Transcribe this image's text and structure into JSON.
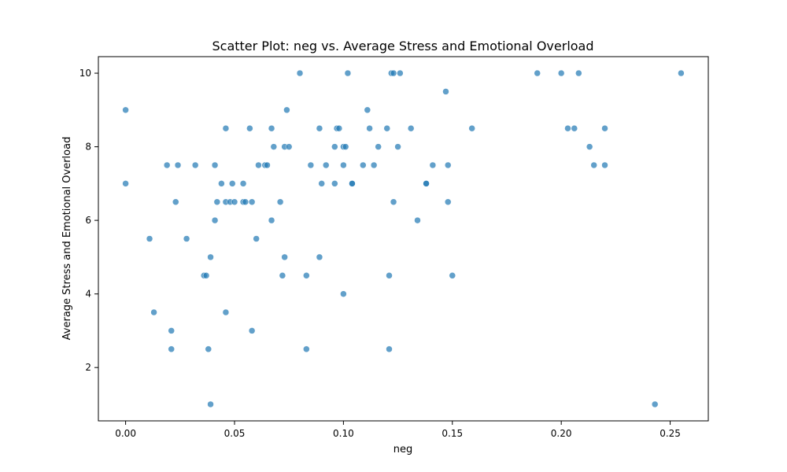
{
  "chart_data": {
    "type": "scatter",
    "title": "Scatter Plot: neg vs. Average Stress and Emotional Overload",
    "xlabel": "neg",
    "ylabel": "Average Stress and Emotional Overload",
    "xlim": [
      -0.0125,
      0.2675
    ],
    "ylim": [
      0.55,
      10.45
    ],
    "xticks": [
      0.0,
      0.05,
      0.1,
      0.15,
      0.2,
      0.25
    ],
    "xtick_labels": [
      "0.00",
      "0.05",
      "0.10",
      "0.15",
      "0.20",
      "0.25"
    ],
    "yticks": [
      2,
      4,
      6,
      8,
      10
    ],
    "ytick_labels": [
      "2",
      "4",
      "6",
      "8",
      "10"
    ],
    "grid": false,
    "color": "#1f77b4",
    "series": [
      {
        "points": [
          [
            0.0,
            9.0
          ],
          [
            0.0,
            7.0
          ],
          [
            0.011,
            5.5
          ],
          [
            0.013,
            3.5
          ],
          [
            0.019,
            7.5
          ],
          [
            0.021,
            3.0
          ],
          [
            0.021,
            2.5
          ],
          [
            0.023,
            6.5
          ],
          [
            0.024,
            7.5
          ],
          [
            0.028,
            5.5
          ],
          [
            0.032,
            7.5
          ],
          [
            0.036,
            4.5
          ],
          [
            0.037,
            4.5
          ],
          [
            0.038,
            2.5
          ],
          [
            0.039,
            5.0
          ],
          [
            0.039,
            1.0
          ],
          [
            0.041,
            7.5
          ],
          [
            0.041,
            6.0
          ],
          [
            0.042,
            6.5
          ],
          [
            0.044,
            7.0
          ],
          [
            0.046,
            8.5
          ],
          [
            0.046,
            6.5
          ],
          [
            0.046,
            3.5
          ],
          [
            0.048,
            6.5
          ],
          [
            0.049,
            7.0
          ],
          [
            0.05,
            6.5
          ],
          [
            0.054,
            7.0
          ],
          [
            0.054,
            6.5
          ],
          [
            0.055,
            6.5
          ],
          [
            0.057,
            8.5
          ],
          [
            0.058,
            6.5
          ],
          [
            0.058,
            3.0
          ],
          [
            0.06,
            5.5
          ],
          [
            0.061,
            7.5
          ],
          [
            0.064,
            7.5
          ],
          [
            0.065,
            7.5
          ],
          [
            0.067,
            8.5
          ],
          [
            0.067,
            6.0
          ],
          [
            0.068,
            8.0
          ],
          [
            0.071,
            6.5
          ],
          [
            0.072,
            4.5
          ],
          [
            0.073,
            8.0
          ],
          [
            0.073,
            5.0
          ],
          [
            0.074,
            9.0
          ],
          [
            0.075,
            8.0
          ],
          [
            0.08,
            10.0
          ],
          [
            0.083,
            4.5
          ],
          [
            0.083,
            2.5
          ],
          [
            0.085,
            7.5
          ],
          [
            0.089,
            8.5
          ],
          [
            0.089,
            5.0
          ],
          [
            0.09,
            7.0
          ],
          [
            0.092,
            7.5
          ],
          [
            0.096,
            8.0
          ],
          [
            0.096,
            7.0
          ],
          [
            0.097,
            8.5
          ],
          [
            0.098,
            8.5
          ],
          [
            0.1,
            8.0
          ],
          [
            0.1,
            7.5
          ],
          [
            0.1,
            4.0
          ],
          [
            0.101,
            8.0
          ],
          [
            0.102,
            10.0
          ],
          [
            0.104,
            7.0
          ],
          [
            0.104,
            7.0
          ],
          [
            0.109,
            7.5
          ],
          [
            0.111,
            9.0
          ],
          [
            0.112,
            8.5
          ],
          [
            0.114,
            7.5
          ],
          [
            0.116,
            8.0
          ],
          [
            0.12,
            8.5
          ],
          [
            0.121,
            4.5
          ],
          [
            0.121,
            2.5
          ],
          [
            0.122,
            10.0
          ],
          [
            0.123,
            10.0
          ],
          [
            0.123,
            6.5
          ],
          [
            0.125,
            8.0
          ],
          [
            0.126,
            10.0
          ],
          [
            0.131,
            8.5
          ],
          [
            0.134,
            6.0
          ],
          [
            0.138,
            7.0
          ],
          [
            0.138,
            7.0
          ],
          [
            0.141,
            7.5
          ],
          [
            0.147,
            9.5
          ],
          [
            0.148,
            7.5
          ],
          [
            0.148,
            6.5
          ],
          [
            0.15,
            4.5
          ],
          [
            0.159,
            8.5
          ],
          [
            0.189,
            10.0
          ],
          [
            0.2,
            10.0
          ],
          [
            0.203,
            8.5
          ],
          [
            0.206,
            8.5
          ],
          [
            0.208,
            10.0
          ],
          [
            0.213,
            8.0
          ],
          [
            0.215,
            7.5
          ],
          [
            0.22,
            8.5
          ],
          [
            0.22,
            7.5
          ],
          [
            0.243,
            1.0
          ],
          [
            0.255,
            10.0
          ]
        ]
      }
    ]
  }
}
